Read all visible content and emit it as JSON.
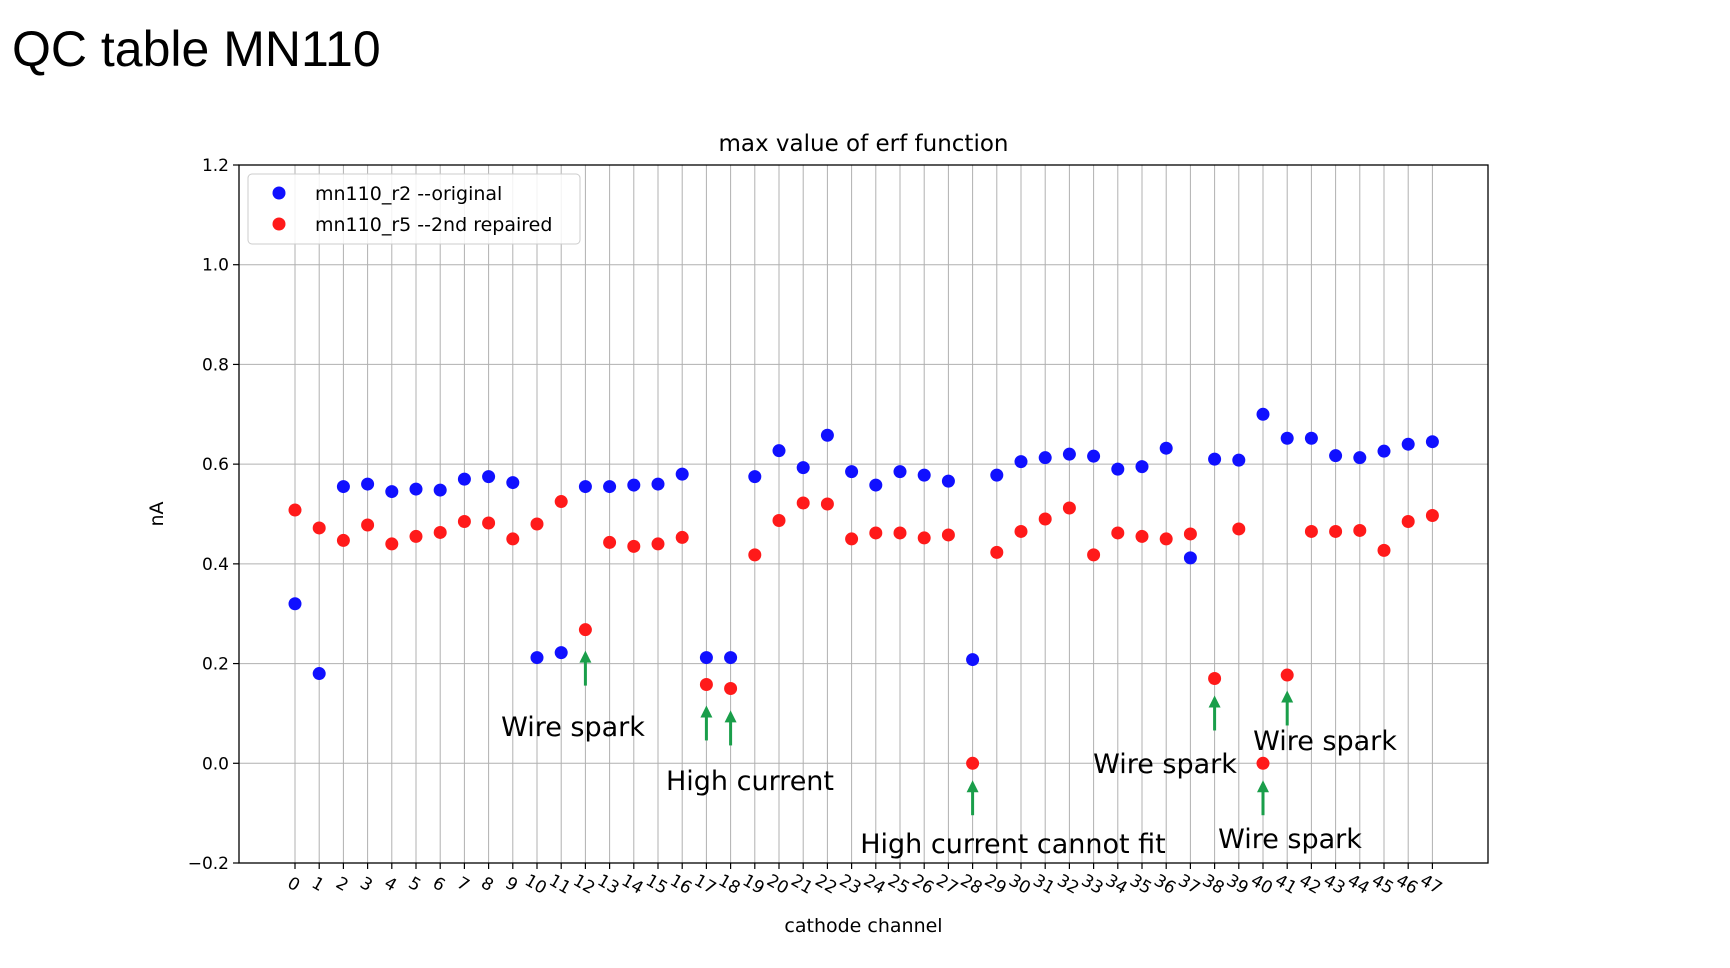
{
  "slide": {
    "title": "QC table MN110"
  },
  "chart_data": {
    "type": "scatter",
    "title": "max value of erf function",
    "xlabel": "cathode channel",
    "ylabel": "nA",
    "ylim": [
      -0.2,
      1.2
    ],
    "yticks": [
      -0.2,
      0.0,
      0.2,
      0.4,
      0.6,
      0.8,
      1.0,
      1.2
    ],
    "ytick_labels": [
      "−0.2",
      "0.0",
      "0.2",
      "0.4",
      "0.6",
      "0.8",
      "1.0",
      "1.2"
    ],
    "x": [
      0,
      1,
      2,
      3,
      4,
      5,
      6,
      7,
      8,
      9,
      10,
      11,
      12,
      13,
      14,
      15,
      16,
      17,
      18,
      19,
      20,
      21,
      22,
      23,
      24,
      25,
      26,
      27,
      28,
      29,
      30,
      31,
      32,
      33,
      34,
      35,
      36,
      37,
      38,
      39,
      40,
      41,
      42,
      43,
      44,
      45,
      46,
      47
    ],
    "grid": true,
    "legend_position": "top-left",
    "series": [
      {
        "name": "mn110_r2 --original",
        "color": "#1010ff",
        "points": [
          [
            0,
            0.32
          ],
          [
            1,
            0.18
          ],
          [
            2,
            0.555
          ],
          [
            3,
            0.56
          ],
          [
            4,
            0.545
          ],
          [
            5,
            0.55
          ],
          [
            6,
            0.548
          ],
          [
            7,
            0.57
          ],
          [
            8,
            0.575
          ],
          [
            9,
            0.563
          ],
          [
            10,
            0.212
          ],
          [
            11,
            0.222
          ],
          [
            12,
            0.555
          ],
          [
            13,
            0.555
          ],
          [
            14,
            0.558
          ],
          [
            15,
            0.56
          ],
          [
            16,
            0.58
          ],
          [
            17,
            0.212
          ],
          [
            18,
            0.212
          ],
          [
            19,
            0.575
          ],
          [
            20,
            0.627
          ],
          [
            21,
            0.593
          ],
          [
            22,
            0.658
          ],
          [
            23,
            0.585
          ],
          [
            24,
            0.558
          ],
          [
            25,
            0.585
          ],
          [
            26,
            0.578
          ],
          [
            27,
            0.566
          ],
          [
            28,
            0.208
          ],
          [
            29,
            0.578
          ],
          [
            30,
            0.605
          ],
          [
            31,
            0.613
          ],
          [
            32,
            0.62
          ],
          [
            33,
            0.616
          ],
          [
            34,
            0.59
          ],
          [
            35,
            0.595
          ],
          [
            36,
            0.632
          ],
          [
            37,
            0.412
          ],
          [
            38,
            0.61
          ],
          [
            39,
            0.608
          ],
          [
            40,
            0.7
          ],
          [
            41,
            0.652
          ],
          [
            42,
            0.652
          ],
          [
            43,
            0.617
          ],
          [
            44,
            0.613
          ],
          [
            45,
            0.626
          ],
          [
            46,
            0.64
          ],
          [
            47,
            0.645
          ]
        ]
      },
      {
        "name": "mn110_r5 --2nd repaired",
        "color": "#ff1a1a",
        "points": [
          [
            0,
            0.508
          ],
          [
            1,
            0.472
          ],
          [
            2,
            0.447
          ],
          [
            3,
            0.478
          ],
          [
            4,
            0.44
          ],
          [
            5,
            0.455
          ],
          [
            6,
            0.463
          ],
          [
            7,
            0.485
          ],
          [
            8,
            0.482
          ],
          [
            9,
            0.45
          ],
          [
            10,
            0.48
          ],
          [
            11,
            0.525
          ],
          [
            12,
            0.268
          ],
          [
            13,
            0.443
          ],
          [
            14,
            0.435
          ],
          [
            15,
            0.44
          ],
          [
            16,
            0.453
          ],
          [
            17,
            0.158
          ],
          [
            18,
            0.15
          ],
          [
            19,
            0.418
          ],
          [
            20,
            0.487
          ],
          [
            21,
            0.522
          ],
          [
            22,
            0.52
          ],
          [
            23,
            0.45
          ],
          [
            24,
            0.462
          ],
          [
            25,
            0.462
          ],
          [
            26,
            0.452
          ],
          [
            27,
            0.458
          ],
          [
            28,
            0.0
          ],
          [
            29,
            0.423
          ],
          [
            30,
            0.465
          ],
          [
            31,
            0.49
          ],
          [
            32,
            0.512
          ],
          [
            33,
            0.418
          ],
          [
            34,
            0.462
          ],
          [
            35,
            0.455
          ],
          [
            36,
            0.45
          ],
          [
            37,
            0.46
          ],
          [
            38,
            0.17
          ],
          [
            39,
            0.47
          ],
          [
            40,
            0.0
          ],
          [
            41,
            0.177
          ],
          [
            42,
            0.465
          ],
          [
            43,
            0.465
          ],
          [
            44,
            0.467
          ],
          [
            45,
            0.427
          ],
          [
            46,
            0.485
          ],
          [
            47,
            0.497
          ]
        ]
      }
    ],
    "annotations": [
      {
        "text": "Wire spark",
        "arrows": [
          [
            12,
            0.22
          ]
        ]
      },
      {
        "text": "High current",
        "arrows": [
          [
            17,
            0.11
          ],
          [
            18,
            0.1
          ]
        ]
      },
      {
        "text": "High current cannot fit",
        "arrows": [
          [
            28,
            -0.04
          ]
        ]
      },
      {
        "text": "Wire spark",
        "arrows": [
          [
            38,
            0.13
          ]
        ]
      },
      {
        "text": "Wire spark",
        "arrows": [
          [
            41,
            0.14
          ]
        ]
      },
      {
        "text": "Wire spark",
        "arrows": [
          [
            40,
            -0.04
          ]
        ]
      }
    ],
    "annotation_color": "#1a9e4a"
  }
}
